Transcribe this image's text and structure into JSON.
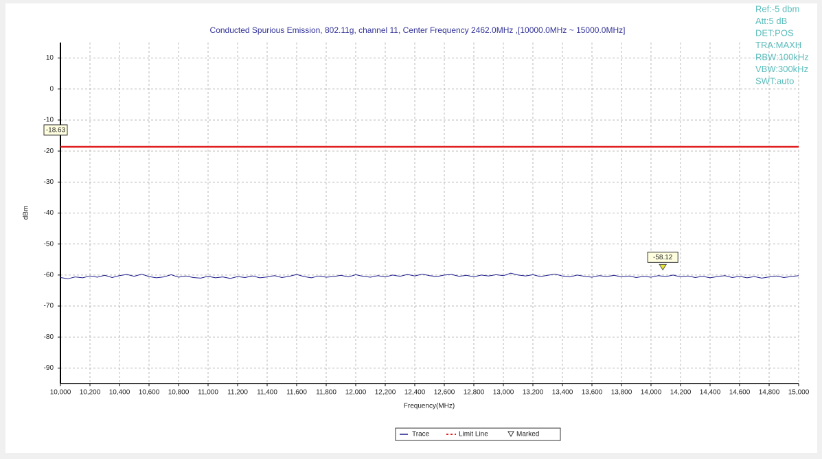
{
  "chart_data": {
    "type": "line",
    "title": "Conducted Spurious Emission, 802.11g, channel 11, Center Frequency 2462.0MHz ,[10000.0MHz ~ 15000.0MHz]",
    "xlabel": "Frequency(MHz)",
    "ylabel": "dBm",
    "instrument_settings": [
      "Ref:-5 dbm",
      "Att:5 dB",
      "DET:POS",
      "TRA:MAXH",
      "RBW:100kHz",
      "VBW:300kHz",
      "SWT:auto"
    ],
    "grid": true,
    "xlim": [
      10000,
      15000
    ],
    "ylim": [
      -95,
      15
    ],
    "xticks": [
      {
        "value": 10000,
        "label": "10,000"
      },
      {
        "value": 10200,
        "label": "10,200"
      },
      {
        "value": 10400,
        "label": "10,400"
      },
      {
        "value": 10600,
        "label": "10,600"
      },
      {
        "value": 10800,
        "label": "10,800"
      },
      {
        "value": 11000,
        "label": "11,000"
      },
      {
        "value": 11200,
        "label": "11,200"
      },
      {
        "value": 11400,
        "label": "11,400"
      },
      {
        "value": 11600,
        "label": "11,600"
      },
      {
        "value": 11800,
        "label": "11,800"
      },
      {
        "value": 12000,
        "label": "12,000"
      },
      {
        "value": 12200,
        "label": "12,200"
      },
      {
        "value": 12400,
        "label": "12,400"
      },
      {
        "value": 12600,
        "label": "12,600"
      },
      {
        "value": 12800,
        "label": "12,800"
      },
      {
        "value": 13000,
        "label": "13,000"
      },
      {
        "value": 13200,
        "label": "13,200"
      },
      {
        "value": 13400,
        "label": "13,400"
      },
      {
        "value": 13600,
        "label": "13,600"
      },
      {
        "value": 13800,
        "label": "13,800"
      },
      {
        "value": 14000,
        "label": "14,000"
      },
      {
        "value": 14200,
        "label": "14,200"
      },
      {
        "value": 14400,
        "label": "14,400"
      },
      {
        "value": 14600,
        "label": "14,600"
      },
      {
        "value": 14800,
        "label": "14,800"
      },
      {
        "value": 15000,
        "label": "15,000"
      }
    ],
    "yticks": [
      10,
      0,
      -10,
      -20,
      -30,
      -40,
      -50,
      -60,
      -70,
      -80,
      -90
    ],
    "x": [
      10000,
      10050,
      10100,
      10150,
      10200,
      10250,
      10300,
      10350,
      10400,
      10450,
      10500,
      10550,
      10600,
      10650,
      10700,
      10750,
      10800,
      10850,
      10900,
      10950,
      11000,
      11050,
      11100,
      11150,
      11200,
      11250,
      11300,
      11350,
      11400,
      11450,
      11500,
      11550,
      11600,
      11650,
      11700,
      11750,
      11800,
      11850,
      11900,
      11950,
      12000,
      12050,
      12100,
      12150,
      12200,
      12250,
      12300,
      12350,
      12400,
      12450,
      12500,
      12550,
      12600,
      12650,
      12700,
      12750,
      12800,
      12850,
      12900,
      12950,
      13000,
      13050,
      13100,
      13150,
      13200,
      13250,
      13300,
      13350,
      13400,
      13450,
      13500,
      13550,
      13600,
      13650,
      13700,
      13750,
      13800,
      13850,
      13900,
      13950,
      14000,
      14050,
      14100,
      14150,
      14200,
      14250,
      14300,
      14350,
      14400,
      14450,
      14500,
      14550,
      14600,
      14650,
      14700,
      14750,
      14800,
      14850,
      14900,
      14950,
      15000
    ],
    "series": [
      {
        "name": "Trace",
        "color": "#1c1c8c",
        "values": [
          -60.8,
          -61.2,
          -60.6,
          -60.9,
          -60.3,
          -60.7,
          -60.1,
          -60.8,
          -60.2,
          -59.8,
          -60.4,
          -59.7,
          -60.5,
          -60.9,
          -60.6,
          -59.9,
          -60.7,
          -60.3,
          -60.8,
          -61.0,
          -60.4,
          -60.9,
          -60.6,
          -61.1,
          -60.5,
          -60.8,
          -60.3,
          -60.9,
          -60.6,
          -60.2,
          -60.8,
          -60.4,
          -59.8,
          -60.5,
          -60.9,
          -60.3,
          -60.7,
          -60.5,
          -60.1,
          -60.6,
          -59.9,
          -60.4,
          -60.7,
          -60.2,
          -60.6,
          -60.0,
          -60.4,
          -59.8,
          -60.3,
          -59.7,
          -60.2,
          -60.5,
          -60.0,
          -59.8,
          -60.4,
          -60.1,
          -60.6,
          -60.0,
          -60.3,
          -59.9,
          -60.2,
          -59.4,
          -60.0,
          -60.3,
          -59.9,
          -60.5,
          -60.1,
          -59.7,
          -60.3,
          -60.6,
          -60.0,
          -60.4,
          -60.7,
          -60.2,
          -60.5,
          -60.1,
          -60.6,
          -60.3,
          -60.8,
          -60.4,
          -60.7,
          -60.2,
          -60.5,
          -60.0,
          -60.6,
          -60.3,
          -60.8,
          -60.4,
          -60.9,
          -60.5,
          -60.2,
          -60.8,
          -60.4,
          -60.9,
          -60.5,
          -61.0,
          -60.6,
          -60.3,
          -60.8,
          -60.5,
          -60.2
        ]
      }
    ],
    "limit_line": {
      "name": "Limit Line",
      "color": "#e02020",
      "value": -18.63
    },
    "marker": {
      "name": "Marked",
      "color": "#e8e830",
      "x": 14080,
      "value": -58.12
    }
  }
}
